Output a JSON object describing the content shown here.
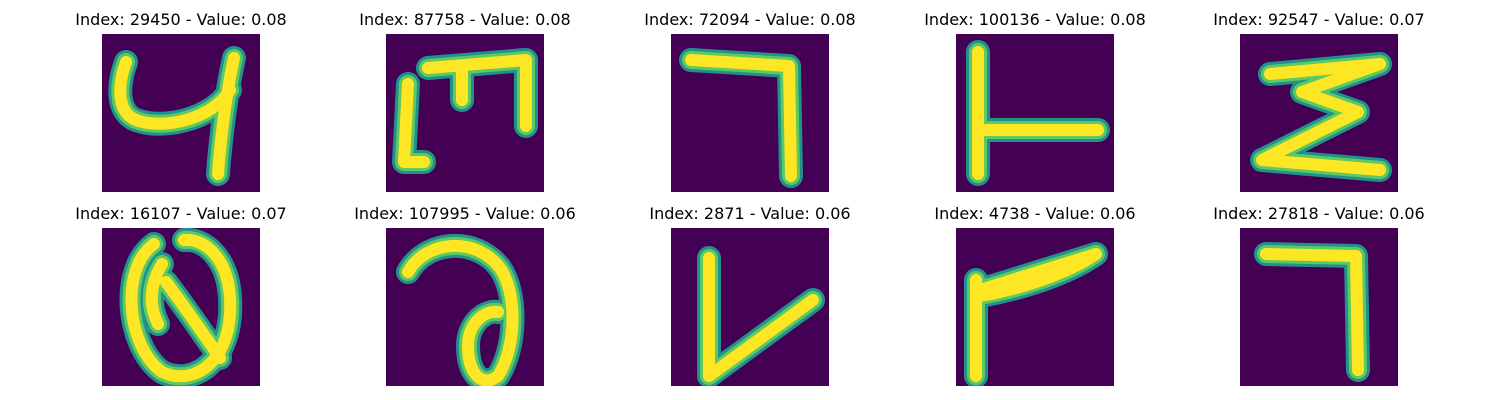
{
  "panels": [
    {
      "title": "Index: 29450 - Value: 0.08",
      "glyph": "stroke-4-like"
    },
    {
      "title": "Index: 87758 - Value: 0.08",
      "glyph": "stroke-m-like"
    },
    {
      "title": "Index: 72094 - Value: 0.08",
      "glyph": "stroke-7-like"
    },
    {
      "title": "Index: 100136 - Value: 0.08",
      "glyph": "stroke-L-like"
    },
    {
      "title": "Index: 92547 - Value: 0.07",
      "glyph": "stroke-sigma-like"
    },
    {
      "title": "Index: 16107 - Value: 0.07",
      "glyph": "stroke-Q-like"
    },
    {
      "title": "Index: 107995 - Value: 0.06",
      "glyph": "stroke-a-like"
    },
    {
      "title": "Index: 2871 - Value: 0.06",
      "glyph": "stroke-V-like"
    },
    {
      "title": "Index: 4738 - Value: 0.06",
      "glyph": "stroke-r-like"
    },
    {
      "title": "Index: 27818 - Value: 0.06",
      "glyph": "stroke-7-like"
    }
  ],
  "colors": {
    "background": "#440154",
    "stroke_core": "#fde725",
    "stroke_edge": "#21918c",
    "stroke_mid": "#5ec962"
  }
}
